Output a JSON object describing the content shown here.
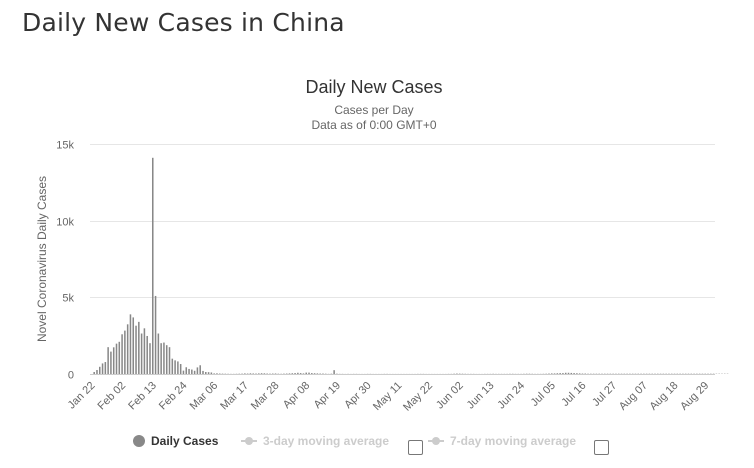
{
  "page": {
    "heading": "Daily New Cases in China"
  },
  "legend": {
    "items": [
      {
        "label": "Daily Cases",
        "color": "#888888",
        "active": true
      },
      {
        "label": "3-day moving average",
        "color": "#cccccc",
        "active": false
      },
      {
        "label": "7-day moving average",
        "color": "#cccccc",
        "active": false
      }
    ]
  },
  "colors": {
    "bar": "#888888",
    "grid": "#e6e6e6",
    "axis_text": "#666666",
    "inactive": "#cccccc"
  },
  "chart_data": {
    "type": "bar",
    "title": "Daily New Cases",
    "subtitle_lines": [
      "Cases per Day",
      "Data as of 0:00 GMT+0"
    ],
    "ylabel": "Novel Coronavirus Daily Cases",
    "xlabel": "",
    "ylim": [
      0,
      15000
    ],
    "yticks": [
      {
        "value": 0,
        "label": "0"
      },
      {
        "value": 5000,
        "label": "5k"
      },
      {
        "value": 10000,
        "label": "10k"
      },
      {
        "value": 15000,
        "label": "15k"
      }
    ],
    "grid": true,
    "x_start": "Jan 22",
    "x_ticks": [
      "Jan 22",
      "Feb 02",
      "Feb 13",
      "Feb 24",
      "Mar 06",
      "Mar 17",
      "Mar 28",
      "Apr 08",
      "Apr 19",
      "Apr 30",
      "May 11",
      "May 22",
      "Jun 02",
      "Jun 13",
      "Jun 24",
      "Jul 05",
      "Jul 16",
      "Jul 27",
      "Aug 07",
      "Aug 18",
      "Aug 29"
    ],
    "tick_interval_days": 11,
    "total_days": 224,
    "series": [
      {
        "name": "Daily Cases",
        "values": [
          0,
          130,
          260,
          470,
          690,
          780,
          1750,
          1460,
          1740,
          1980,
          2100,
          2590,
          2830,
          3240,
          3890,
          3690,
          3150,
          3400,
          2640,
          2980,
          2480,
          2010,
          14100,
          5090,
          2640,
          2010,
          2050,
          1880,
          1750,
          1000,
          890,
          820,
          650,
          220,
          440,
          330,
          290,
          210,
          430,
          570,
          200,
          130,
          120,
          100,
          40,
          45,
          30,
          25,
          20,
          15,
          10,
          10,
          15,
          20,
          25,
          40,
          30,
          45,
          35,
          30,
          40,
          50,
          45,
          30,
          25,
          30,
          35,
          20,
          15,
          25,
          30,
          40,
          50,
          60,
          80,
          60,
          40,
          90,
          90,
          60,
          50,
          40,
          30,
          30,
          20,
          10,
          20,
          250,
          20,
          10,
          10,
          5,
          10,
          5,
          10,
          10,
          5,
          5,
          5,
          10,
          10,
          5,
          5,
          5,
          5,
          10,
          10,
          5,
          5,
          5,
          5,
          5,
          5,
          5,
          5,
          5,
          5,
          10,
          10,
          10,
          5,
          5,
          5,
          5,
          5,
          5,
          5,
          5,
          10,
          10,
          20,
          30,
          25,
          20,
          15,
          10,
          10,
          10,
          5,
          5,
          5,
          10,
          10,
          10,
          15,
          10,
          10,
          10,
          10,
          10,
          15,
          15,
          10,
          10,
          10,
          15,
          20,
          20,
          15,
          10,
          10,
          10,
          15,
          20,
          30,
          40,
          40,
          50,
          60,
          60,
          80,
          80,
          70,
          60,
          50,
          40,
          30,
          30,
          20,
          20,
          20,
          20,
          20,
          20,
          20,
          20,
          20,
          20,
          20,
          20,
          20,
          20,
          20,
          20,
          20,
          20,
          20,
          20,
          20,
          20,
          20,
          20,
          20,
          20,
          20,
          20,
          20,
          20,
          20,
          20,
          20,
          20,
          20,
          20,
          20,
          20,
          20,
          20,
          20,
          20,
          20,
          20,
          20,
          20,
          20,
          20,
          20,
          20,
          20
        ]
      }
    ]
  }
}
